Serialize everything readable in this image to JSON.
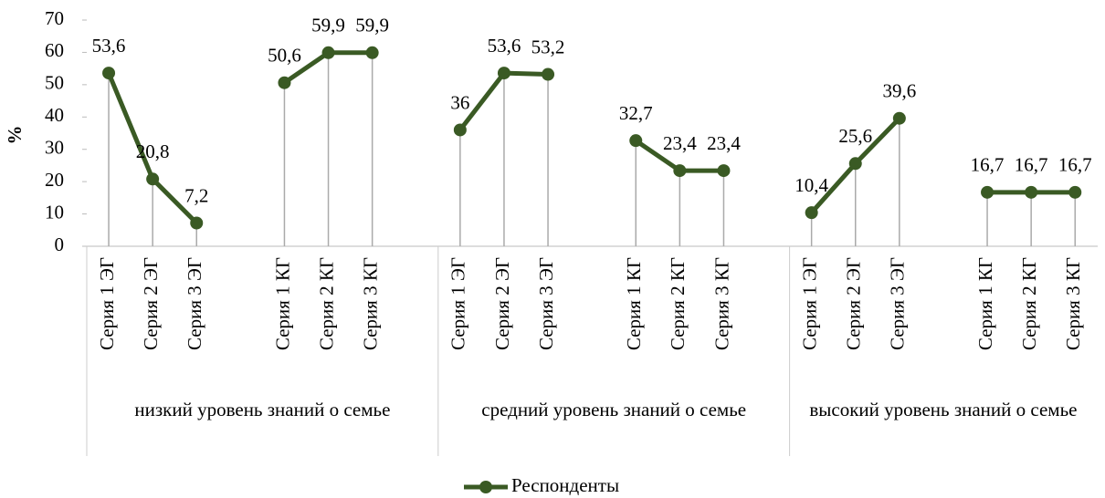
{
  "chart_data": {
    "type": "line",
    "y_label": "%",
    "groups": [
      {
        "name": "низкий уровень знаний о семье",
        "categories": [
          "Серия 1 ЭГ",
          "Серия 2 ЭГ",
          "Серия 3 ЭГ",
          null,
          "Серия 1 КГ",
          "Серия 2 КГ",
          "Серия 3 КГ",
          null
        ]
      },
      {
        "name": "средний уровень знаний о семье",
        "categories": [
          "Серия 1 ЭГ",
          "Серия 2 ЭГ",
          "Серия 3 ЭГ",
          null,
          "Серия 1 КГ",
          "Серия 2 КГ",
          "Серия 3 КГ",
          null
        ]
      },
      {
        "name": "высокий уровень знаний о семье",
        "categories": [
          "Серия 1 ЭГ",
          "Серия 2 ЭГ",
          "Серия 3 ЭГ",
          null,
          "Серия 1 КГ",
          "Серия 2 КГ",
          "Серия 3 КГ"
        ]
      }
    ],
    "series": [
      {
        "name": "Респонденты",
        "color": "#3a5a24",
        "values": [
          53.6,
          20.8,
          7.2,
          null,
          50.6,
          59.9,
          59.9,
          null,
          36,
          53.6,
          53.2,
          null,
          32.7,
          23.4,
          23.4,
          null,
          10.4,
          25.6,
          39.6,
          null,
          16.7,
          16.7,
          16.7
        ],
        "value_labels": [
          "53,6",
          "20,8",
          "7,2",
          null,
          "50,6",
          "59,9",
          "59,9",
          null,
          "36",
          "53,6",
          "53,2",
          null,
          "32,7",
          "23,4",
          "23,4",
          null,
          "10,4",
          "25,6",
          "39,6",
          null,
          "16,7",
          "16,7",
          "16,7"
        ]
      }
    ],
    "ylim": [
      0,
      70
    ],
    "yticks": [
      0,
      10,
      20,
      30,
      40,
      50,
      60,
      70
    ],
    "legend": "bottom"
  }
}
